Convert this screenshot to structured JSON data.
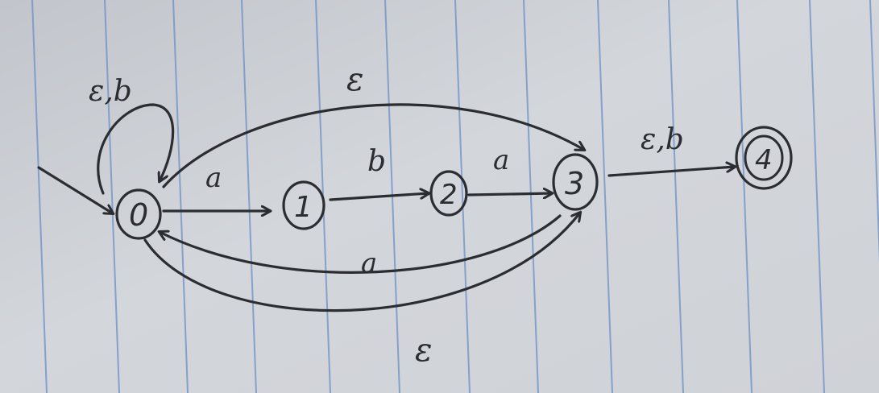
{
  "automaton": {
    "states": [
      {
        "id": "s0",
        "label": "0",
        "start": true,
        "accept": false
      },
      {
        "id": "s1",
        "label": "1",
        "start": false,
        "accept": false
      },
      {
        "id": "s2",
        "label": "2",
        "start": false,
        "accept": false
      },
      {
        "id": "s3",
        "label": "3",
        "start": false,
        "accept": false
      },
      {
        "id": "s4",
        "label": "4",
        "start": false,
        "accept": true
      }
    ],
    "transitions": [
      {
        "id": "t00",
        "from": "0",
        "to": "0",
        "label": "ε,b"
      },
      {
        "id": "t01",
        "from": "0",
        "to": "1",
        "label": "a"
      },
      {
        "id": "t12",
        "from": "1",
        "to": "2",
        "label": "b"
      },
      {
        "id": "t23",
        "from": "2",
        "to": "3",
        "label": "a"
      },
      {
        "id": "t03eps",
        "from": "0",
        "to": "3",
        "label": "ε"
      },
      {
        "id": "t30a",
        "from": "3",
        "to": "0",
        "label": "a"
      },
      {
        "id": "t03eps2",
        "from": "0",
        "to": "3",
        "label": "ε"
      },
      {
        "id": "t34",
        "from": "3",
        "to": "4",
        "label": "ε,b"
      }
    ]
  },
  "colors": {
    "ink": "#2b2d31",
    "paper": "#c9ccd2",
    "rule_line": "#6b8fc7"
  }
}
